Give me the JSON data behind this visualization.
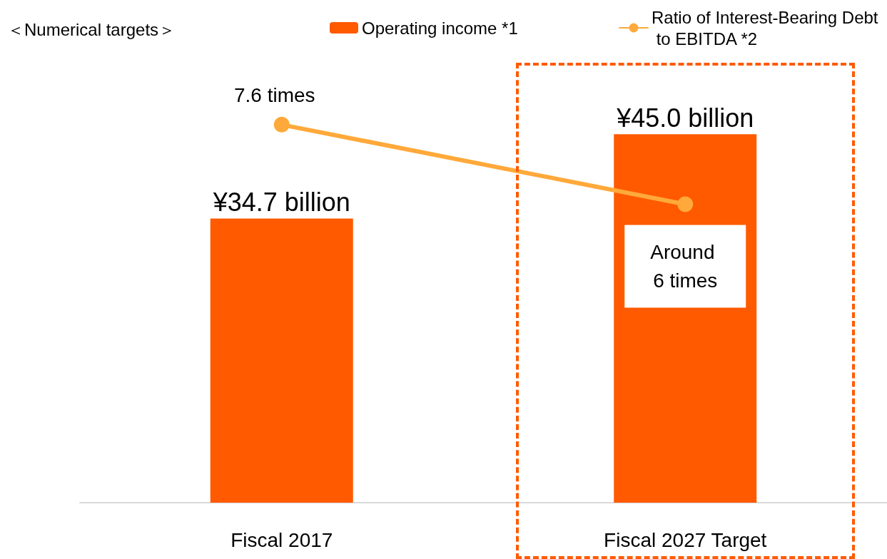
{
  "chart_data": {
    "type": "bar",
    "title": "＜Numerical targets＞",
    "categories": [
      "Fiscal 2017",
      "Fiscal 2027 Target"
    ],
    "series": [
      {
        "name": "Operating income *1",
        "color": "#ff5a00",
        "values": [
          34.7,
          45.0
        ],
        "value_labels": [
          "¥34.7 billion",
          "¥45.0 billion"
        ]
      },
      {
        "name": "Ratio of Interest-Bearing Debt to EBITDA *2",
        "type": "line",
        "axis": "y2",
        "color": "#ffa93a",
        "values": [
          7.6,
          6
        ],
        "value_labels": [
          "7.6 times",
          "Around 6 times"
        ]
      }
    ],
    "legend": "top right",
    "marker": "circle",
    "tick_labels": "x"
  }
}
